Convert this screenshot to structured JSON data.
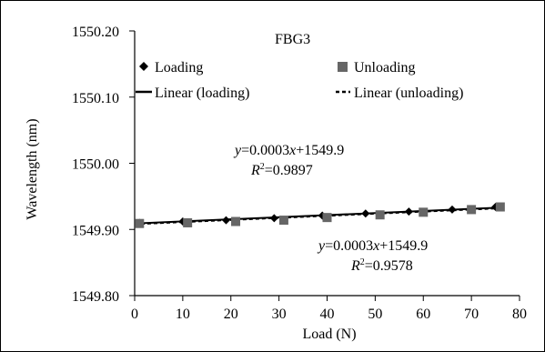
{
  "chart_data": {
    "type": "scatter",
    "title": "FBG3",
    "xlabel": "Load (N)",
    "ylabel": "Wavelength (nm)",
    "xlim": [
      0,
      80
    ],
    "ylim": [
      1549.8,
      1550.2
    ],
    "x_ticks": [
      "0",
      "10",
      "20",
      "30",
      "40",
      "50",
      "60",
      "70",
      "80"
    ],
    "y_ticks": [
      "1549.80",
      "1549.90",
      "1550.00",
      "1550.10",
      "1550.20"
    ],
    "grid": false,
    "legend_position": "top",
    "series": [
      {
        "name": "Loading",
        "marker": "diamond",
        "color": "#000000",
        "x": [
          1,
          10,
          19,
          29,
          39,
          48,
          57,
          66,
          75
        ],
        "y": [
          1549.91,
          1549.912,
          1549.914,
          1549.917,
          1549.921,
          1549.924,
          1549.927,
          1549.93,
          1549.934
        ]
      },
      {
        "name": "Unloading",
        "marker": "square",
        "color": "#666666",
        "x": [
          1,
          11,
          21,
          31,
          40,
          51,
          60,
          70,
          76
        ],
        "y": [
          1549.909,
          1549.91,
          1549.912,
          1549.914,
          1549.918,
          1549.922,
          1549.926,
          1549.93,
          1549.934
        ]
      }
    ],
    "trendlines": [
      {
        "name": "Linear (loading)",
        "style": "solid",
        "color": "#000000",
        "x": [
          0,
          76
        ],
        "y": [
          1549.909,
          1549.933
        ]
      },
      {
        "name": "Linear (unloading)",
        "style": "dashed",
        "color": "#000000",
        "x": [
          0,
          76
        ],
        "y": [
          1549.908,
          1549.932
        ]
      }
    ],
    "annotations": [
      {
        "eq_prefix": "y",
        "eq_body": "=0.0003",
        "eq_var": "x",
        "eq_tail": "+1549.9",
        "r2_prefix": "R",
        "r2_sup": "2",
        "r2_tail": "=0.9897"
      },
      {
        "eq_prefix": "y",
        "eq_body": "=0.0003",
        "eq_var": "x",
        "eq_tail": "+1549.9",
        "r2_prefix": "R",
        "r2_sup": "2",
        "r2_tail": "=0.9578"
      }
    ]
  }
}
